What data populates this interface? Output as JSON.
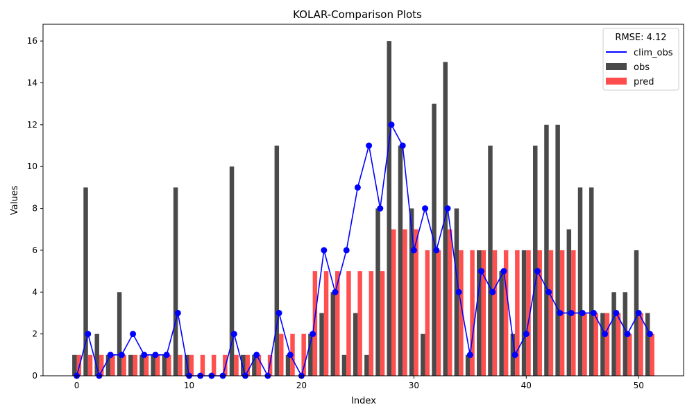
{
  "chart_data": {
    "type": "bar",
    "title": "KOLAR-Comparison Plots",
    "xlabel": "Index",
    "ylabel": "Values",
    "x": [
      0,
      1,
      2,
      3,
      4,
      5,
      6,
      7,
      8,
      9,
      10,
      11,
      12,
      13,
      14,
      15,
      16,
      17,
      18,
      19,
      20,
      21,
      22,
      23,
      24,
      25,
      26,
      27,
      28,
      29,
      30,
      31,
      32,
      33,
      34,
      35,
      36,
      37,
      38,
      39,
      40,
      41,
      42,
      43,
      44,
      45,
      46,
      47,
      48,
      49,
      50,
      51
    ],
    "xlim": [
      -3,
      54
    ],
    "ylim": [
      0,
      16.8
    ],
    "xticks": [
      0,
      10,
      20,
      30,
      40,
      50
    ],
    "yticks": [
      0,
      2,
      4,
      6,
      8,
      10,
      12,
      14,
      16
    ],
    "grid": false,
    "legend_title": "RMSE: 4.12",
    "legend_position": "top-right",
    "series": [
      {
        "name": "clim_obs",
        "kind": "line",
        "color": "#0000ff",
        "values": [
          0,
          2,
          0,
          1,
          1,
          2,
          1,
          1,
          1,
          3,
          0,
          0,
          0,
          0,
          2,
          0,
          1,
          0,
          3,
          1,
          0,
          2,
          6,
          4,
          6,
          9,
          11,
          8,
          12,
          11,
          6,
          8,
          6,
          8,
          4,
          1,
          5,
          4,
          5,
          1,
          2,
          5,
          4,
          3,
          3,
          3,
          3,
          2,
          3,
          2,
          3,
          2
        ]
      },
      {
        "name": "obs",
        "kind": "bar",
        "color": "#4a4a4a",
        "values": [
          1,
          9,
          2,
          1,
          4,
          1,
          1,
          1,
          1,
          9,
          1,
          0,
          0,
          0,
          10,
          1,
          1,
          0,
          11,
          1,
          0,
          2,
          3,
          4,
          1,
          3,
          1,
          8,
          16,
          11,
          8,
          2,
          13,
          15,
          8,
          1,
          6,
          11,
          5,
          2,
          6,
          11,
          12,
          12,
          7,
          9,
          9,
          3,
          4,
          4,
          6,
          3
        ]
      },
      {
        "name": "pred",
        "kind": "bar",
        "color": "#ff4d4d",
        "values": [
          1,
          1,
          1,
          1,
          1,
          1,
          1,
          1,
          1,
          1,
          1,
          1,
          1,
          1,
          1,
          1,
          1,
          1,
          2,
          2,
          2,
          5,
          5,
          5,
          5,
          5,
          5,
          5,
          7,
          7,
          7,
          6,
          6,
          7,
          6,
          6,
          6,
          6,
          6,
          6,
          6,
          6,
          6,
          6,
          6,
          3,
          3,
          3,
          3,
          2,
          3,
          2
        ]
      }
    ]
  }
}
